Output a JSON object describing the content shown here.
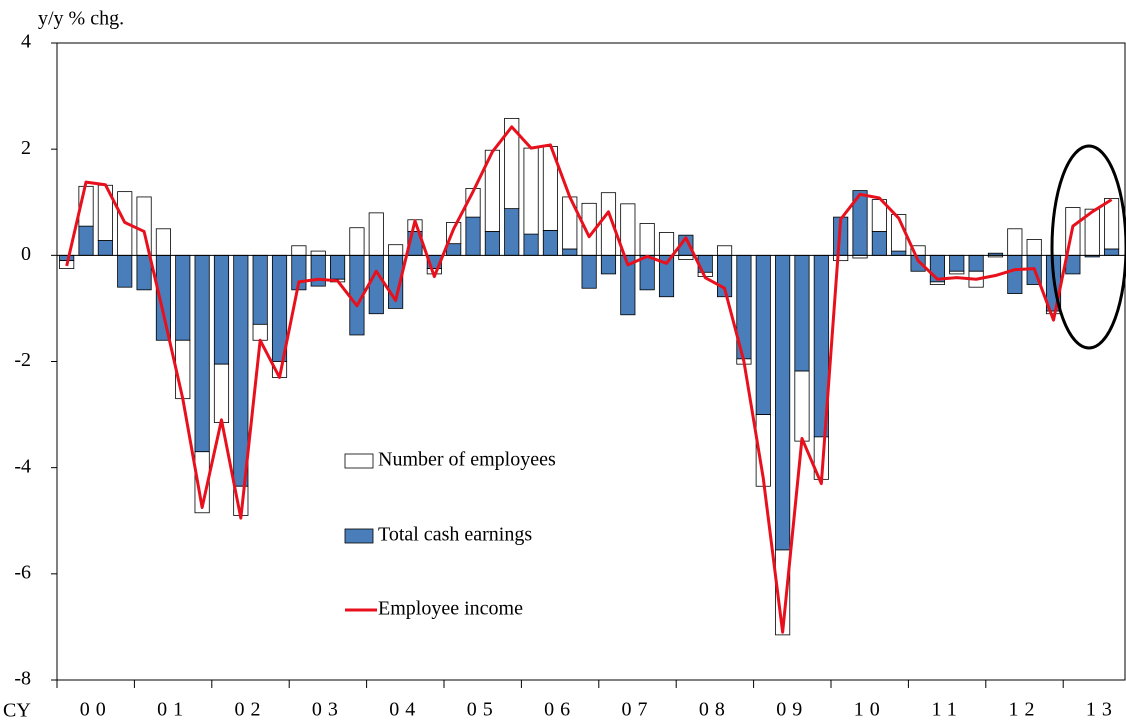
{
  "chart_data": {
    "type": "bar",
    "stacked": true,
    "y_axis_label": "y/y % chg.",
    "x_axis_label": "CY",
    "categories": [
      "00",
      null,
      null,
      null,
      "01",
      null,
      null,
      null,
      "02",
      null,
      null,
      null,
      "03",
      null,
      null,
      null,
      "04",
      null,
      null,
      null,
      "05",
      null,
      null,
      null,
      "06",
      null,
      null,
      null,
      "07",
      null,
      null,
      null,
      "08",
      null,
      null,
      null,
      "09",
      null,
      null,
      null,
      "10",
      null,
      null,
      null,
      "11",
      null,
      null,
      null,
      "12",
      null,
      null,
      null,
      "13",
      null,
      null
    ],
    "series": [
      {
        "name": "Total cash earnings",
        "type": "bar",
        "color": "#4a7ebb",
        "values": [
          -0.1,
          0.55,
          0.28,
          -0.6,
          -0.65,
          -1.6,
          -1.6,
          -3.7,
          -2.05,
          -4.35,
          -1.3,
          -2.0,
          -0.65,
          -0.58,
          -0.45,
          -1.5,
          -1.1,
          -1.0,
          0.45,
          -0.25,
          0.22,
          0.72,
          0.45,
          0.88,
          0.4,
          0.47,
          0.12,
          -0.62,
          -0.35,
          -1.12,
          -0.65,
          -0.78,
          0.38,
          -0.32,
          -0.78,
          -1.95,
          -3.0,
          -5.55,
          -2.18,
          -3.42,
          0.72,
          1.22,
          0.45,
          0.08,
          -0.3,
          -0.5,
          -0.3,
          -0.3,
          0.04,
          -0.72,
          -0.55,
          -1.05,
          -0.35,
          -0.03,
          0.12
        ]
      },
      {
        "name": "Number of employees",
        "type": "bar",
        "color": "#ffffff",
        "values": [
          -0.15,
          0.75,
          1.04,
          1.2,
          1.1,
          0.5,
          -1.1,
          -1.15,
          -1.1,
          -0.55,
          -0.3,
          -0.3,
          0.18,
          0.08,
          -0.05,
          0.52,
          0.8,
          0.2,
          0.22,
          -0.1,
          0.4,
          0.54,
          1.53,
          1.7,
          1.62,
          1.58,
          0.98,
          0.98,
          1.18,
          0.97,
          0.6,
          0.43,
          -0.08,
          -0.08,
          0.18,
          -0.1,
          -1.35,
          -1.6,
          -1.32,
          -0.8,
          -0.1,
          -0.05,
          0.6,
          0.69,
          0.18,
          -0.05,
          -0.05,
          -0.3,
          -0.03,
          0.5,
          0.3,
          -0.05,
          0.9,
          0.87,
          0.95
        ]
      },
      {
        "name": "Employee income",
        "type": "line",
        "color": "#e8101c",
        "values": [
          -0.2,
          1.38,
          1.33,
          0.62,
          0.45,
          -1.1,
          -2.7,
          -4.75,
          -3.1,
          -4.95,
          -1.6,
          -2.3,
          -0.5,
          -0.45,
          -0.48,
          -0.95,
          -0.3,
          -0.85,
          0.65,
          -0.4,
          0.5,
          1.2,
          1.95,
          2.42,
          2.02,
          2.08,
          1.1,
          0.35,
          0.82,
          -0.18,
          -0.02,
          -0.15,
          0.33,
          -0.42,
          -0.62,
          -2.0,
          -4.2,
          -7.1,
          -3.45,
          -4.3,
          0.68,
          1.15,
          1.08,
          0.7,
          -0.1,
          -0.45,
          -0.42,
          -0.45,
          -0.38,
          -0.27,
          -0.25,
          -1.22,
          0.55,
          0.82,
          1.05
        ]
      }
    ],
    "ylim": [
      -8,
      4
    ],
    "yticks": [
      -8,
      -6,
      -4,
      -2,
      0,
      2,
      4
    ],
    "grid": false
  }
}
